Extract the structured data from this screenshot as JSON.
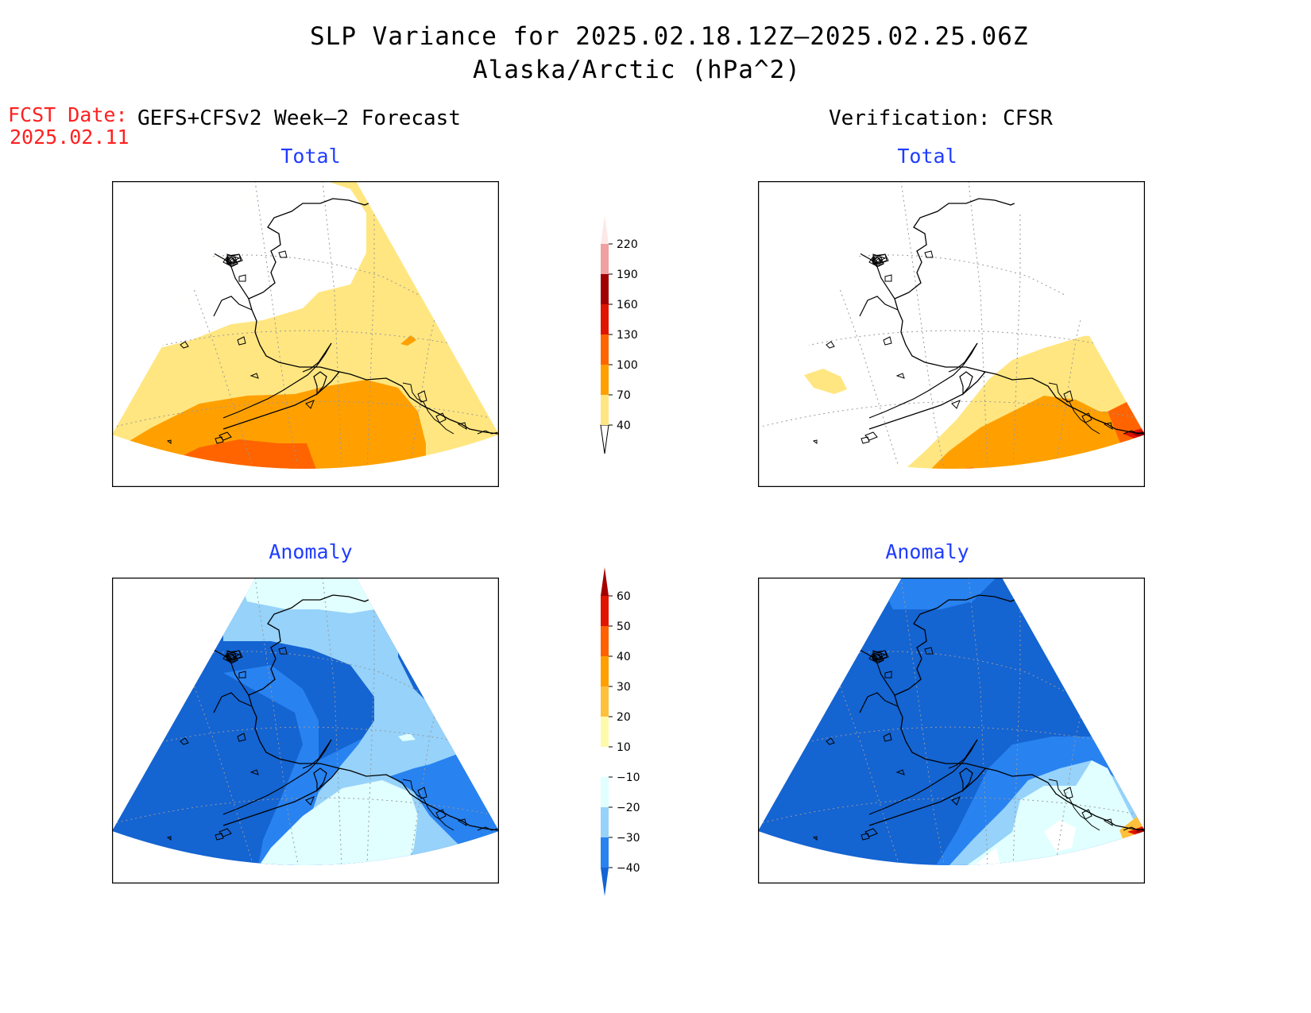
{
  "title": {
    "line1": "SLP Variance for 2025.02.18.12Z–2025.02.25.06Z",
    "line2": "Alaska/Arctic (hPa^2)"
  },
  "forecast_date": {
    "label": "FCST Date:",
    "value": "2025.02.11"
  },
  "columns": {
    "left": "GEFS+CFSv2 Week–2 Forecast",
    "right": "Verification: CFSR"
  },
  "panels": [
    {
      "column": "forecast",
      "row": "top",
      "subtitle": "Total"
    },
    {
      "column": "verification",
      "row": "top",
      "subtitle": "Total"
    },
    {
      "column": "forecast",
      "row": "bottom",
      "subtitle": "Anomaly"
    },
    {
      "column": "verification",
      "row": "bottom",
      "subtitle": "Anomaly"
    }
  ],
  "legends": {
    "total": {
      "labels": [
        "40",
        "70",
        "100",
        "130",
        "160",
        "190",
        "220"
      ],
      "colors": [
        "#ffffff",
        "#ffe680",
        "#ffa000",
        "#ff6400",
        "#e01400",
        "#a00000",
        "#f0a0a0",
        "#fde8e8"
      ]
    },
    "anomaly": {
      "labels": [
        "−40",
        "−30",
        "−20",
        "−10",
        "10",
        "20",
        "30",
        "40",
        "50",
        "60"
      ],
      "colors": [
        "#1464d2",
        "#2882f0",
        "#96d2fa",
        "#e1ffff",
        "#ffffff",
        "#fffaaa",
        "#ffc03c",
        "#ffa000",
        "#ff6000",
        "#e11400",
        "#a50000"
      ]
    }
  }
}
